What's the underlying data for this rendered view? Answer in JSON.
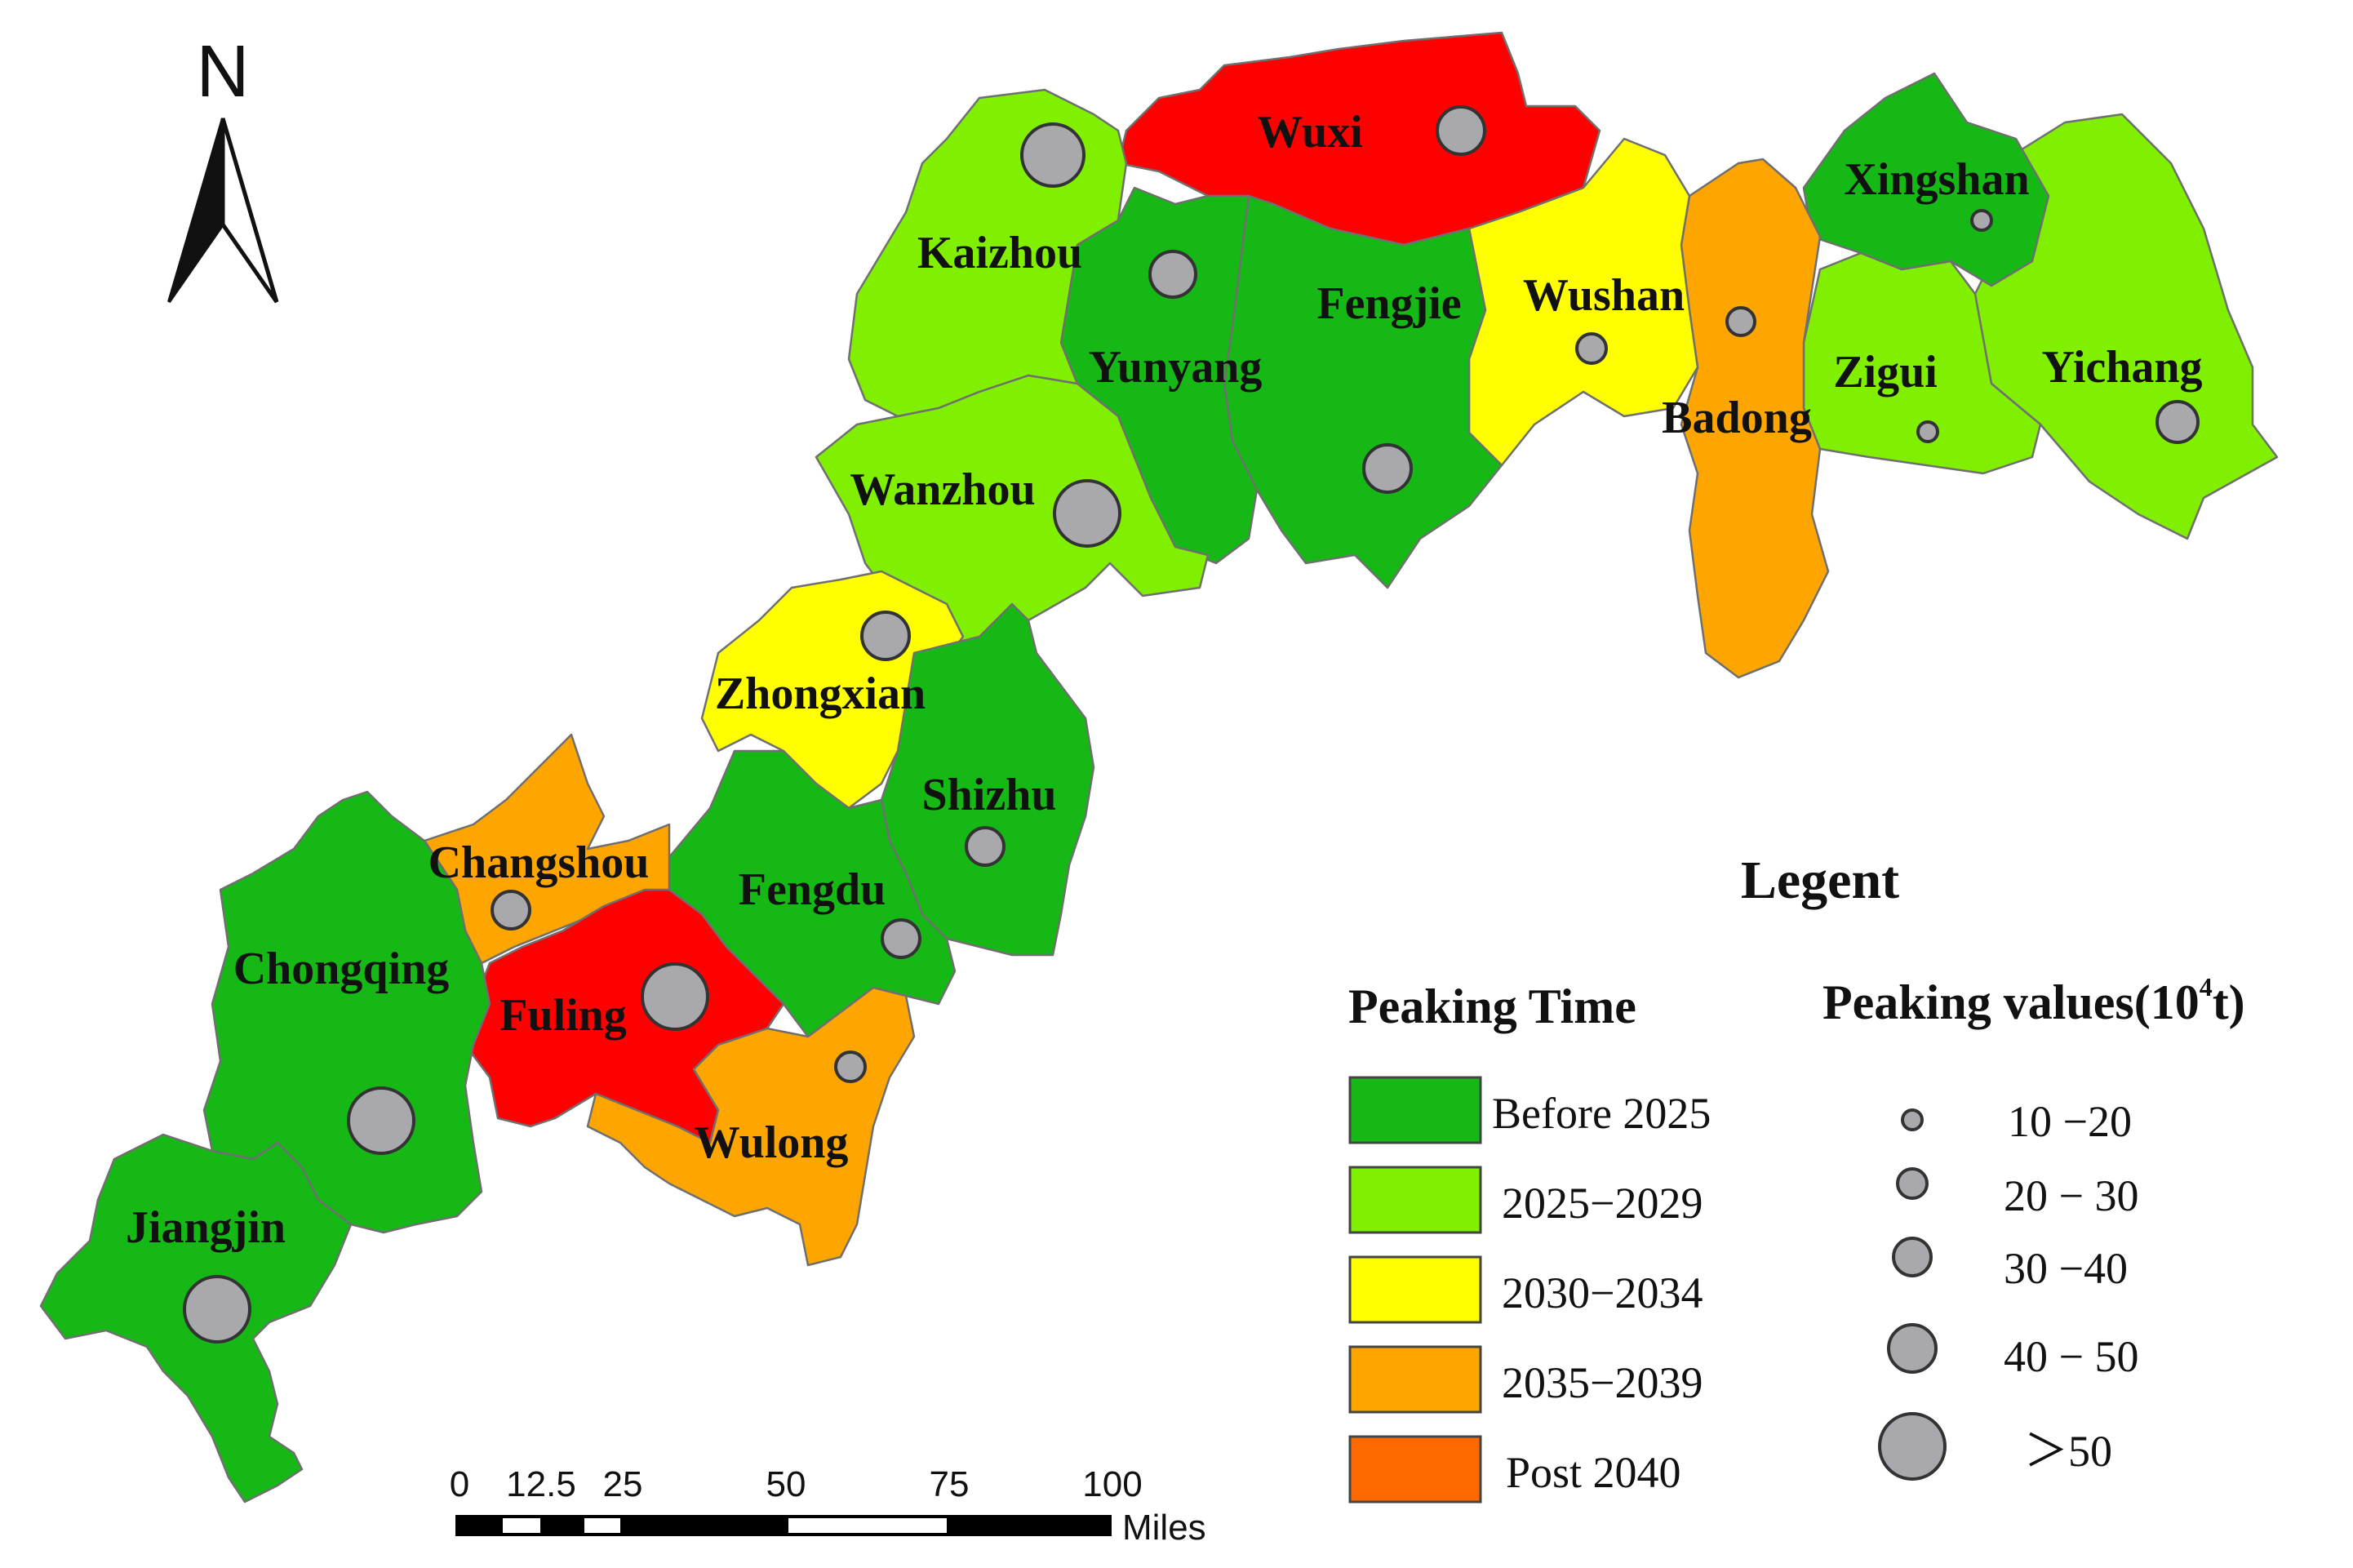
{
  "colors": {
    "before_2025": "#16b816",
    "c2025_2029": "#80f000",
    "c2030_2034": "#ffff00",
    "c2035_2039": "#ffa500",
    "post_2040": "#ff0000",
    "post_2040_swatch": "#ff6a00",
    "bubble_fill": "#a8a8ad"
  },
  "north_arrow": {
    "label": "N",
    "icon": "north-arrow-icon"
  },
  "regions": {
    "wuxi": "Wuxi",
    "kaizhou": "Kaizhou",
    "xingshan": "Xingshan",
    "fengjie": "Fengjie",
    "wushan": "Wushan",
    "yunyang": "Yunyang",
    "zigui": "Zigui",
    "yichang": "Yichang",
    "badong": "Badong",
    "wanzhou": "Wanzhou",
    "zhongxian": "Zhongxian",
    "shizhu": "Shizhu",
    "changshou": "Changshou",
    "fengdu": "Fengdu",
    "chongqing": "Chongqing",
    "fuling": "Fuling",
    "wulong": "Wulong",
    "jiangjin": "Jiangjin"
  },
  "legend": {
    "title": "Legent",
    "time_heading": "Peaking Time",
    "time_items": [
      "Before  2025",
      "2025−2029",
      "2030−2034",
      "2035−2039",
      "Post  2040"
    ],
    "values_heading": "Peaking values(10",
    "values_heading_exp": "4",
    "values_heading_unit": "t)",
    "value_items": [
      "10 −20",
      "20 − 30",
      "30 −40",
      "40 − 50",
      "＞50"
    ]
  },
  "scale_bar": {
    "ticks": [
      "0",
      "12.5",
      "25",
      "50",
      "75",
      "100"
    ],
    "unit": "Miles"
  }
}
